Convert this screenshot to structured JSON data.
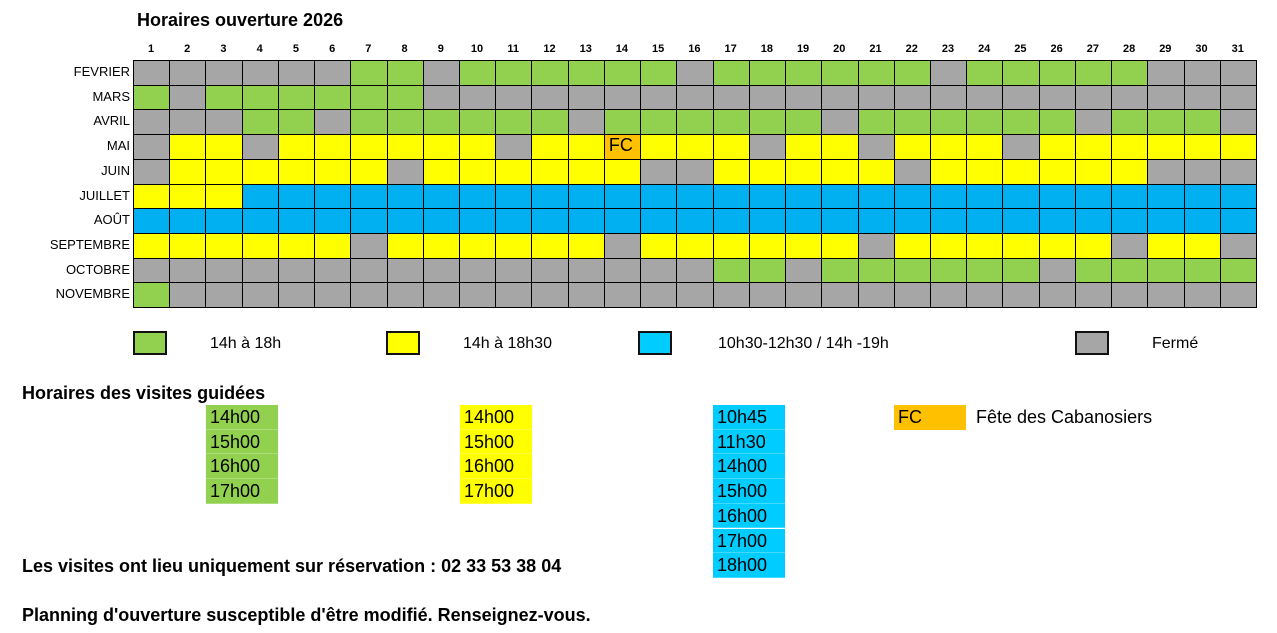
{
  "title": "Horaires ouverture 2026",
  "colors": {
    "G": "#92d050",
    "Y": "#ffff00",
    "B": "#00b0f0",
    "X": "#a6a6a6",
    "F": "#ffc000",
    "legend_blue": "#00ccff"
  },
  "days": [
    "1",
    "2",
    "3",
    "4",
    "5",
    "6",
    "7",
    "8",
    "9",
    "10",
    "11",
    "12",
    "13",
    "14",
    "15",
    "16",
    "17",
    "18",
    "19",
    "20",
    "21",
    "22",
    "23",
    "24",
    "25",
    "26",
    "27",
    "28",
    "29",
    "30",
    "31"
  ],
  "months": [
    {
      "name": "FEVRIER",
      "cells": "XXXXXXGGXGGGGGGXGGGGGGXGGGGGXXX"
    },
    {
      "name": "MARS",
      "cells": "GXGGGGGGXXXXXXXXXXXXXXXXXXXXXXX"
    },
    {
      "name": "AVRIL",
      "cells": "XXXGGXGGGGGGXGGGGGGXGGGGGGXGGGX"
    },
    {
      "name": "MAI",
      "cells": "XYYXYYYYYYXYYFYYYXYYXYYYXYYYYYY"
    },
    {
      "name": "JUIN",
      "cells": "XYYYYYYXYYYYYYXXYYYYYXYYYYYYXXX"
    },
    {
      "name": "JUILLET",
      "cells": "YYYBBBBBBBBBBBBBBBBBBBBBBBBBBBB"
    },
    {
      "name": "AOÛT",
      "cells": "BBBBBBBBBBBBBBBBBBBBBBBBBBBBBBB"
    },
    {
      "name": "SEPTEMBRE",
      "cells": "YYYYYYXYYYYYYXYYYYYYXYYYYYYXYYX"
    },
    {
      "name": "OCTOBRE",
      "cells": "XXXXXXXXXXXXXXXXGGXGGGGGGXGGGGG"
    },
    {
      "name": "NOVEMBRE",
      "cells": "GXXXXXXXXXXXXXXXXXXXXXXXXXXXXXX"
    }
  ],
  "fc_label": "FC",
  "legend": [
    {
      "key": "G",
      "label": "14h à 18h"
    },
    {
      "key": "Y",
      "label": "14h à 18h30"
    },
    {
      "key": "legend_blue",
      "label": "10h30-12h30 / 14h -19h"
    },
    {
      "key": "X",
      "label": "Fermé"
    }
  ],
  "visits": {
    "heading": "Horaires des visites guidées",
    "green": [
      "14h00",
      "15h00",
      "16h00",
      "17h00"
    ],
    "yellow": [
      "14h00",
      "15h00",
      "16h00",
      "17h00"
    ],
    "blue": [
      "10h45",
      "11h30",
      "14h00",
      "15h00",
      "16h00",
      "17h00",
      "18h00"
    ],
    "fc": {
      "code": "FC",
      "label": "Fête des Cabanosiers"
    }
  },
  "reservation": "Les visites ont lieu uniquement sur réservation : 02 33 53 38 04",
  "notice": "Planning d'ouverture susceptible d'être modifié. Renseignez-vous."
}
